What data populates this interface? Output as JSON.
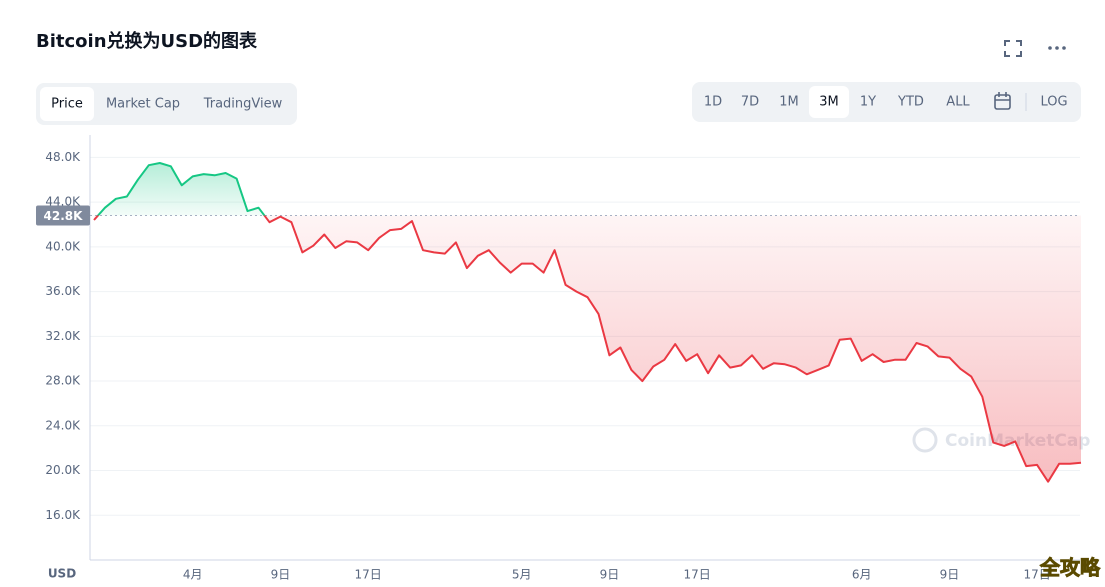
{
  "header": {
    "title": "Bitcoin兑换为USD的图表",
    "tabs": [
      "Price",
      "Market Cap",
      "TradingView"
    ],
    "active_tab": 0,
    "ranges": [
      "1D",
      "7D",
      "1M",
      "3M",
      "1Y",
      "YTD",
      "ALL"
    ],
    "active_range": 3,
    "log": "LOG"
  },
  "chart_data": {
    "type": "line",
    "categories": [
      null,
      null,
      null,
      null,
      null,
      null,
      null,
      null,
      null,
      "4月",
      null,
      null,
      null,
      null,
      null,
      null,
      null,
      "9日",
      null,
      null,
      null,
      null,
      null,
      null,
      null,
      "17日",
      null,
      null,
      null,
      null,
      null,
      null,
      null,
      null,
      null,
      null,
      null,
      null,
      null,
      "5月",
      null,
      null,
      null,
      null,
      null,
      null,
      null,
      "9日",
      null,
      null,
      null,
      null,
      null,
      null,
      null,
      "17日",
      null,
      null,
      null,
      null,
      null,
      null,
      null,
      null,
      null,
      null,
      null,
      null,
      null,
      null,
      "6月",
      null,
      null,
      null,
      null,
      null,
      null,
      null,
      "9日",
      null,
      null,
      null,
      null,
      null,
      null,
      null,
      "17日",
      null,
      null,
      null,
      null
    ],
    "values": [
      42400,
      43500,
      44300,
      44500,
      46000,
      47300,
      47500,
      47200,
      45500,
      46300,
      46500,
      46400,
      46600,
      46100,
      43200,
      43500,
      42200,
      42700,
      42200,
      39500,
      40100,
      41100,
      39900,
      40500,
      40400,
      39700,
      40800,
      41500,
      41600,
      42300,
      39700,
      39500,
      39400,
      40400,
      38100,
      39200,
      39700,
      38600,
      37700,
      38500,
      38500,
      37700,
      39700,
      36600,
      36000,
      35500,
      34000,
      30300,
      31000,
      29000,
      28000,
      29300,
      29900,
      31300,
      29800,
      30400,
      28700,
      30300,
      29200,
      29400,
      30300,
      29100,
      29600,
      29500,
      29200,
      28600,
      29000,
      29400,
      31700,
      31800,
      29800,
      30400,
      29700,
      29900,
      29900,
      31400,
      31100,
      30200,
      30100,
      29100,
      28400,
      26600,
      22500,
      22200,
      22600,
      20400,
      20500,
      19000,
      20600,
      20600,
      20700
    ],
    "color": "#ea3943",
    "up_color": "#16c784",
    "reference": {
      "value": 42800,
      "label": "42.8K"
    },
    "ylim": [
      12000,
      50000
    ],
    "yticks": [
      {
        "value": 16000,
        "label": "16.0K"
      },
      {
        "value": 20000,
        "label": "20.0K"
      },
      {
        "value": 24000,
        "label": "24.0K"
      },
      {
        "value": 28000,
        "label": "28.0K"
      },
      {
        "value": 32000,
        "label": "32.0K"
      },
      {
        "value": 36000,
        "label": "36.0K"
      },
      {
        "value": 40000,
        "label": "40.0K"
      },
      {
        "value": 44000,
        "label": "44.0K"
      },
      {
        "value": 48000,
        "label": "48.0K"
      }
    ],
    "y_label": "USD",
    "grid": true,
    "watermark": "CoinMarketCap"
  },
  "corner_mark": "全攻略"
}
